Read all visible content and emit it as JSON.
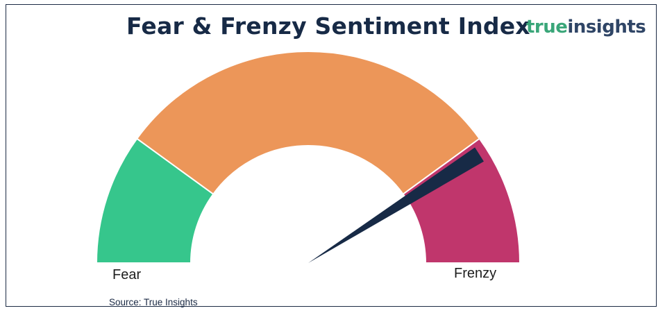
{
  "header": {
    "title": "Fear & Frenzy Sentiment Index"
  },
  "logo": {
    "part1": "true",
    "part2": "insights"
  },
  "chart_data": {
    "type": "gauge",
    "title": "Fear & Frenzy Sentiment Index",
    "range": [
      0,
      100
    ],
    "min_label": "Fear",
    "max_label": "Frenzy",
    "bands": [
      {
        "from": 0,
        "to": 20,
        "color": "#36c68c"
      },
      {
        "from": 20,
        "to": 80,
        "color": "#ec9659"
      },
      {
        "from": 80,
        "to": 100,
        "color": "#c0366c"
      }
    ],
    "needle_value": 82,
    "needle_color": "#172a46"
  },
  "footer": {
    "source": "Source: True Insights"
  }
}
